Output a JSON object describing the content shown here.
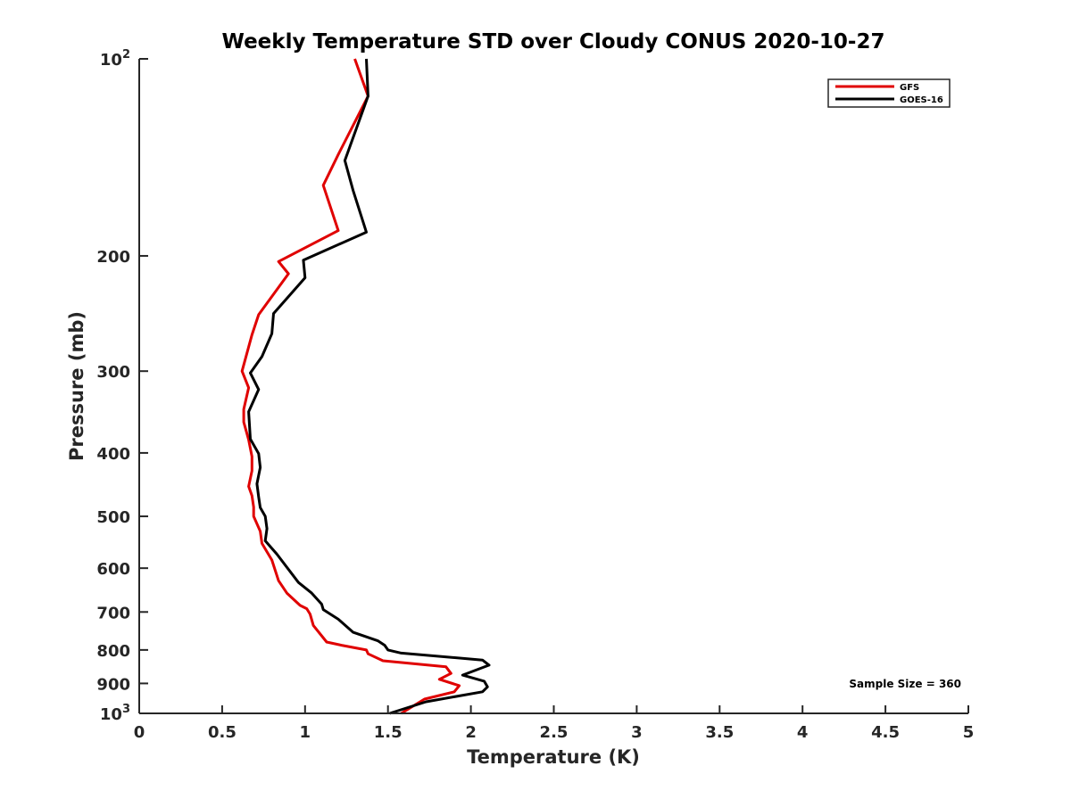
{
  "chart_data": {
    "type": "line",
    "title": "Weekly Temperature STD over Cloudy CONUS 2020-10-27",
    "xlabel": "Temperature (K)",
    "ylabel": "Pressure (mb)",
    "xlim": [
      0,
      5
    ],
    "ylim": [
      100,
      1000
    ],
    "y_scale": "log",
    "y_reversed": true,
    "x_ticks": [
      {
        "value": 0,
        "label": "0"
      },
      {
        "value": 0.5,
        "label": "0.5"
      },
      {
        "value": 1,
        "label": "1"
      },
      {
        "value": 1.5,
        "label": "1.5"
      },
      {
        "value": 2,
        "label": "2"
      },
      {
        "value": 2.5,
        "label": "2.5"
      },
      {
        "value": 3,
        "label": "3"
      },
      {
        "value": 3.5,
        "label": "3.5"
      },
      {
        "value": 4,
        "label": "4"
      },
      {
        "value": 4.5,
        "label": "4.5"
      },
      {
        "value": 5,
        "label": "5"
      }
    ],
    "y_ticks": [
      {
        "value": 100,
        "base": "10",
        "exp": "2"
      },
      {
        "value": 200,
        "label": "200"
      },
      {
        "value": 300,
        "label": "300"
      },
      {
        "value": 400,
        "label": "400"
      },
      {
        "value": 500,
        "label": "500"
      },
      {
        "value": 600,
        "label": "600"
      },
      {
        "value": 700,
        "label": "700"
      },
      {
        "value": 800,
        "label": "800"
      },
      {
        "value": 900,
        "label": "900"
      },
      {
        "value": 1000,
        "base": "10",
        "exp": "3"
      }
    ],
    "grid": false,
    "legend_position": "top-right",
    "annotation": "Sample Size = 360",
    "series": [
      {
        "name": "GFS",
        "color": "#e00000",
        "x": [
          1.3,
          1.38,
          1.2,
          1.11,
          1.2,
          0.84,
          0.9,
          0.72,
          0.68,
          0.62,
          0.66,
          0.63,
          0.63,
          0.66,
          0.68,
          0.68,
          0.66,
          0.68,
          0.69,
          0.69,
          0.73,
          0.74,
          0.8,
          0.84,
          0.89,
          0.97,
          1.01,
          1.03,
          1.05,
          1.13,
          1.22,
          1.37,
          1.38,
          1.47,
          1.85,
          1.88,
          1.81,
          1.93,
          1.9,
          1.72,
          1.58
        ],
        "y": [
          100,
          114,
          140,
          156,
          183,
          204,
          213,
          246,
          264,
          300,
          318,
          343,
          359,
          382,
          405,
          426,
          450,
          465,
          484,
          500,
          527,
          550,
          583,
          627,
          655,
          684,
          692,
          705,
          734,
          778,
          787,
          800,
          811,
          831,
          849,
          869,
          887,
          907,
          927,
          951,
          1000
        ]
      },
      {
        "name": "GOES-16",
        "color": "#000000",
        "x": [
          1.37,
          1.38,
          1.24,
          1.29,
          1.37,
          0.99,
          1.0,
          0.81,
          0.8,
          0.74,
          0.67,
          0.72,
          0.66,
          0.67,
          0.72,
          0.73,
          0.71,
          0.72,
          0.73,
          0.76,
          0.77,
          0.76,
          0.83,
          0.96,
          1.04,
          1.1,
          1.11,
          1.2,
          1.29,
          1.44,
          1.48,
          1.5,
          1.58,
          2.07,
          2.11,
          1.95,
          2.08,
          2.1,
          2.07,
          1.73,
          1.51
        ],
        "y": [
          100,
          114,
          143,
          159,
          184,
          203,
          216,
          245,
          263,
          285,
          302,
          320,
          346,
          381,
          401,
          421,
          446,
          467,
          485,
          500,
          522,
          545,
          571,
          631,
          655,
          681,
          694,
          718,
          752,
          775,
          787,
          800,
          809,
          829,
          844,
          874,
          893,
          911,
          927,
          960,
          1000
        ]
      }
    ]
  }
}
